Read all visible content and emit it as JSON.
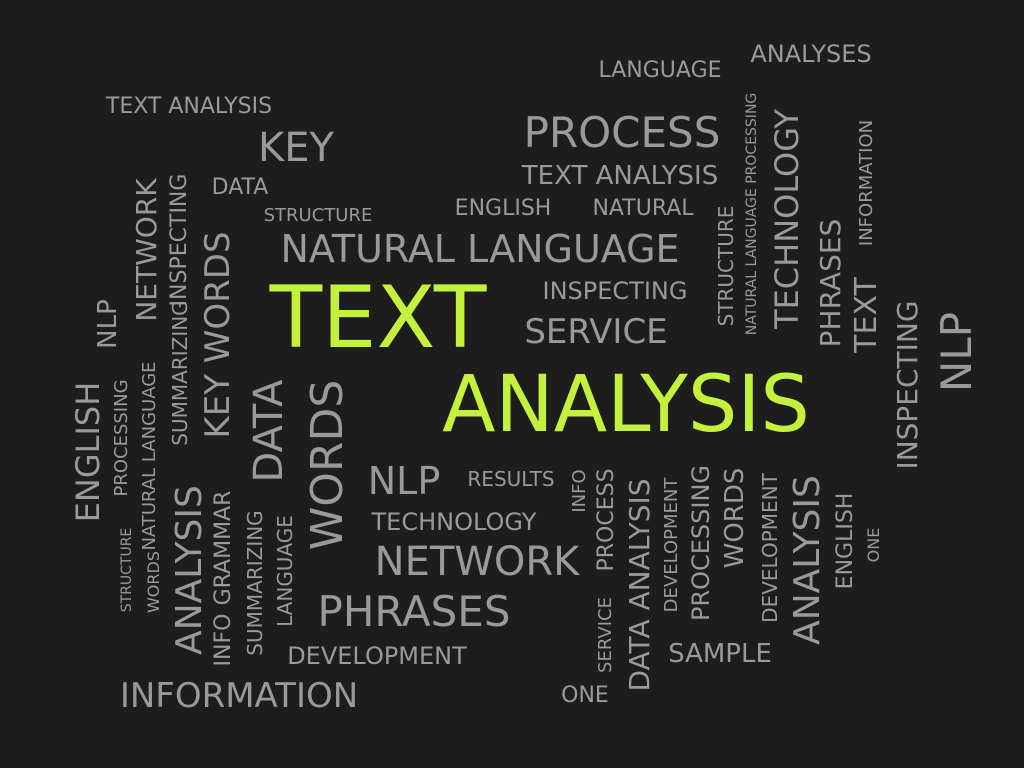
{
  "colors": {
    "background": "#1d1d1d",
    "word": "#9a9a9a",
    "highlight": "#c4f23c"
  },
  "words": [
    {
      "text": "TEXT",
      "emphasis": true
    },
    {
      "text": "ANALYSIS",
      "emphasis": true
    },
    {
      "text": "NATURAL LANGUAGE"
    },
    {
      "text": "PROCESS"
    },
    {
      "text": "KEY"
    },
    {
      "text": "TEXT ANALYSIS"
    },
    {
      "text": "LANGUAGE"
    },
    {
      "text": "ANALYSES"
    },
    {
      "text": "TEXT ANALYSIS"
    },
    {
      "text": "DATA"
    },
    {
      "text": "STRUCTURE"
    },
    {
      "text": "ENGLISH"
    },
    {
      "text": "NATURAL"
    },
    {
      "text": "INSPECTING"
    },
    {
      "text": "SERVICE"
    },
    {
      "text": "NLP"
    },
    {
      "text": "RESULTS"
    },
    {
      "text": "TECHNOLOGY"
    },
    {
      "text": "NETWORK"
    },
    {
      "text": "PHRASES"
    },
    {
      "text": "DEVELOPMENT"
    },
    {
      "text": "INFORMATION"
    },
    {
      "text": "SAMPLE"
    },
    {
      "text": "ONE"
    },
    {
      "text": "NETWORK"
    },
    {
      "text": "INSPECTING"
    },
    {
      "text": "NLP"
    },
    {
      "text": "SUMMARIZING"
    },
    {
      "text": "KEY WORDS"
    },
    {
      "text": "ENGLISH"
    },
    {
      "text": "PROCESSING"
    },
    {
      "text": "NATURAL LANGUAGE"
    },
    {
      "text": "DATA"
    },
    {
      "text": "WORDS"
    },
    {
      "text": "STRUCTURE"
    },
    {
      "text": "WORDS"
    },
    {
      "text": "ANALYSIS"
    },
    {
      "text": "INFO"
    },
    {
      "text": "GRAMMAR"
    },
    {
      "text": "SUMMARIZING"
    },
    {
      "text": "LANGUAGE"
    },
    {
      "text": "NATURAL LANGUAGE PROCESSING"
    },
    {
      "text": "TECHNOLOGY"
    },
    {
      "text": "STRUCTURE"
    },
    {
      "text": "PHRASES"
    },
    {
      "text": "TEXT"
    },
    {
      "text": "INFORMATION"
    },
    {
      "text": "INSPECTING"
    },
    {
      "text": "NLP"
    },
    {
      "text": "INFO"
    },
    {
      "text": "PROCESS"
    },
    {
      "text": "SERVICE"
    },
    {
      "text": "DATA ANALYSIS"
    },
    {
      "text": "DEVELOPMENT"
    },
    {
      "text": "PROCESSING"
    },
    {
      "text": "WORDS"
    },
    {
      "text": "DEVELOPMENT"
    },
    {
      "text": "ANALYSIS"
    },
    {
      "text": "ENGLISH"
    },
    {
      "text": "ONE"
    },
    {
      "text": "SUMMARIZING"
    }
  ]
}
